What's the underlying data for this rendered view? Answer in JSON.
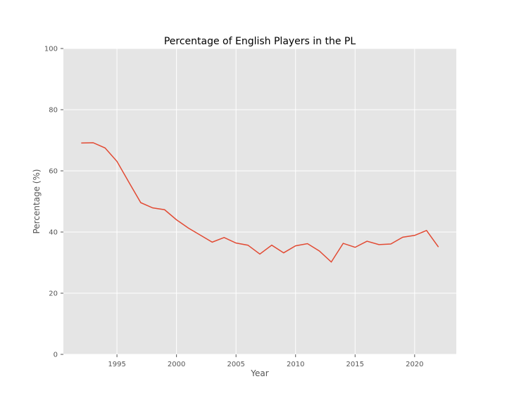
{
  "chart_data": {
    "type": "line",
    "title": "Percentage of English Players in the PL",
    "xlabel": "Year",
    "ylabel": "Percentage (%)",
    "xlim": [
      1990.5,
      2023.5
    ],
    "ylim": [
      0,
      100
    ],
    "xticks": [
      1995,
      2000,
      2005,
      2010,
      2015,
      2020
    ],
    "yticks": [
      0,
      20,
      40,
      60,
      80,
      100
    ],
    "grid": true,
    "colors": {
      "line": "#e24a33",
      "plot_background": "#e5e5e5",
      "grid": "#ffffff",
      "tick_text": "#555555"
    },
    "series": [
      {
        "x": [
          1992,
          1993,
          1994,
          1995,
          1996,
          1997,
          1998,
          1999,
          2000,
          2001,
          2002,
          2003,
          2004,
          2005,
          2006,
          2007,
          2008,
          2009,
          2010,
          2011,
          2012,
          2013,
          2014,
          2015,
          2016,
          2017,
          2018,
          2019,
          2020,
          2021,
          2022
        ],
        "y": [
          69.1,
          69.2,
          67.5,
          63.1,
          56.3,
          49.6,
          47.9,
          47.3,
          44.0,
          41.3,
          39.0,
          36.7,
          38.2,
          36.4,
          35.7,
          32.8,
          35.7,
          33.2,
          35.5,
          36.2,
          33.8,
          30.2,
          36.3,
          35.0,
          37.0,
          35.9,
          36.1,
          38.3,
          38.9,
          40.5,
          35.1
        ]
      }
    ]
  }
}
